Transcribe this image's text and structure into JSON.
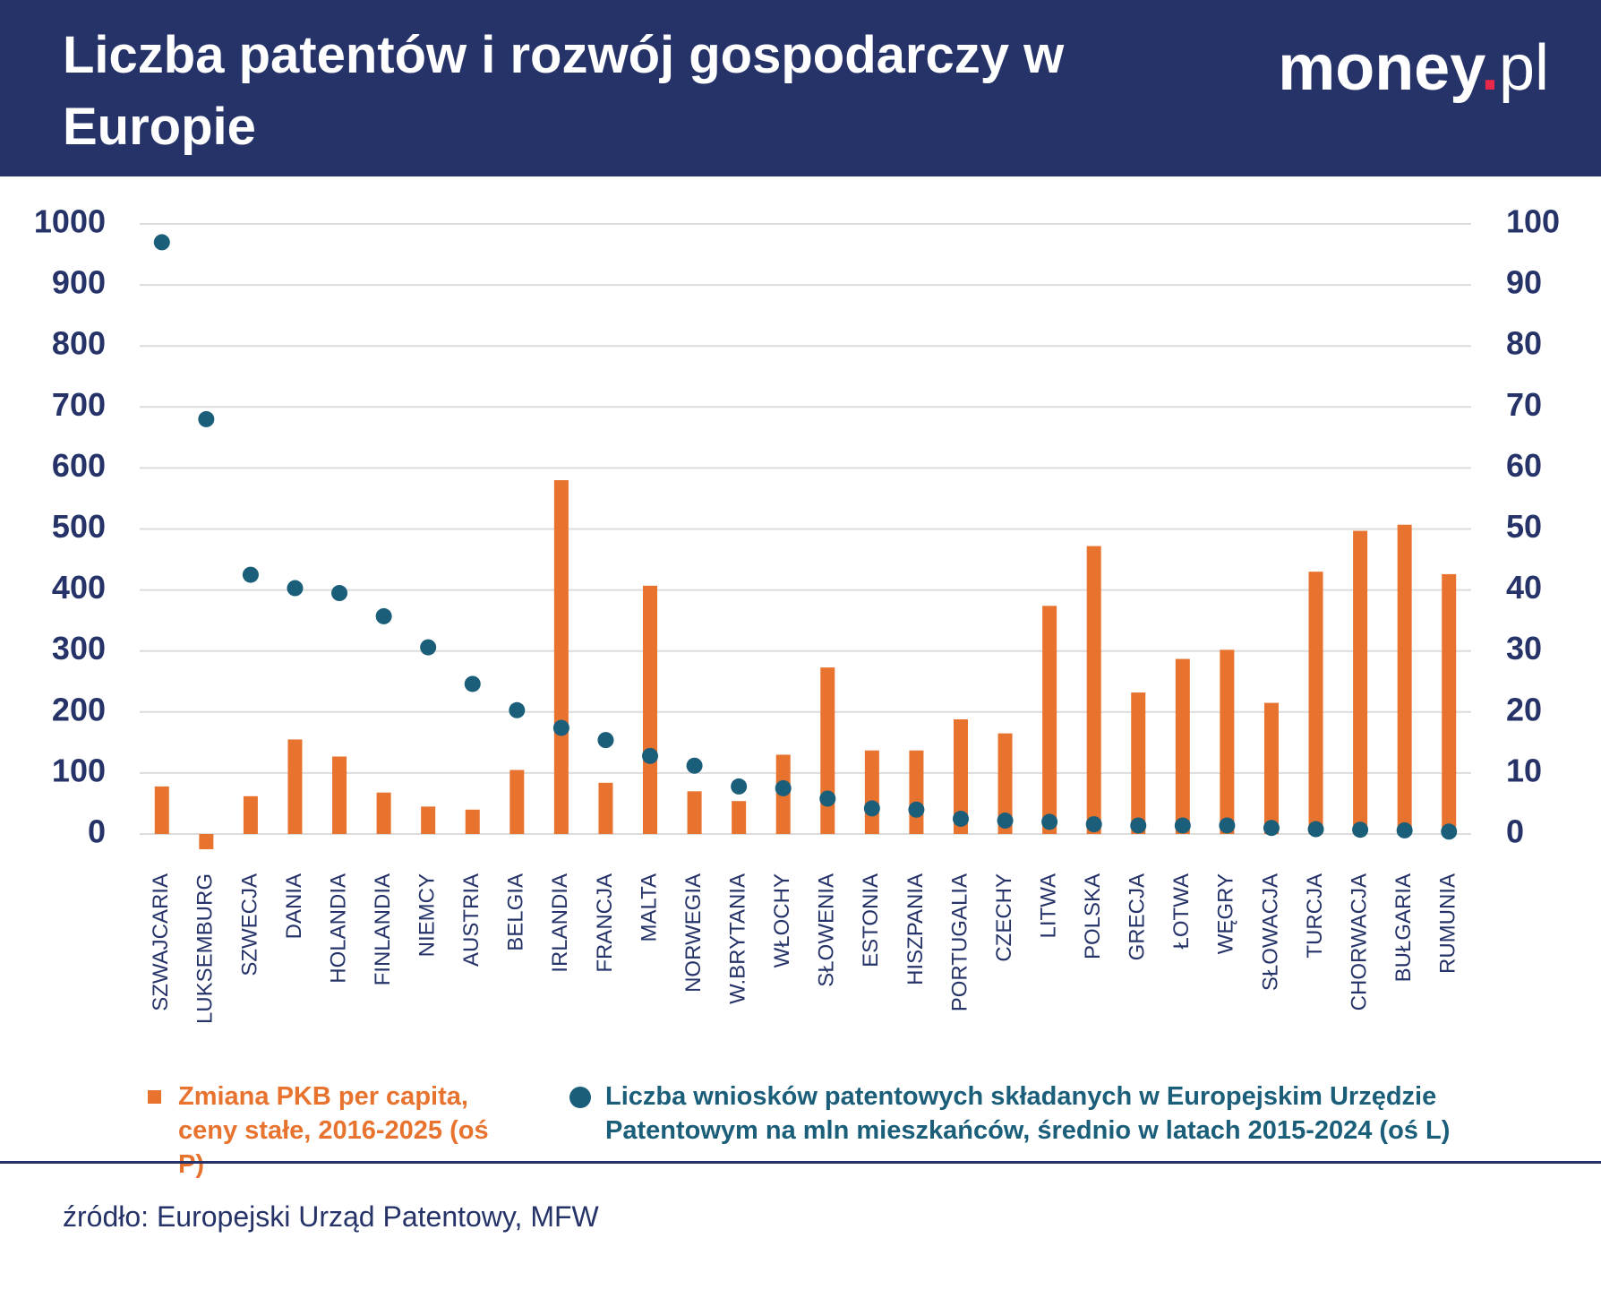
{
  "logo": {
    "main": "money",
    "dot": ".",
    "suffix": "pl"
  },
  "source": "źródło: Europejski Urząd Patentowy, MFW",
  "chart_data": {
    "type": "bar",
    "title": "Liczba patentów i rozwój gospodarczy w Europie",
    "categories": [
      "SZWAJCARIA",
      "LUKSEMBURG",
      "SZWECJA",
      "DANIA",
      "HOLANDIA",
      "FINLANDIA",
      "NIEMCY",
      "AUSTRIA",
      "BELGIA",
      "IRLANDIA",
      "FRANCJA",
      "MALTA",
      "NORWEGIA",
      "W.BRYTANIA",
      "WŁOCHY",
      "SŁOWENIA",
      "ESTONIA",
      "HISZPANIA",
      "PORTUGALIA",
      "CZECHY",
      "LITWA",
      "POLSKA",
      "GRECJA",
      "ŁOTWA",
      "WĘGRY",
      "SŁOWACJA",
      "TURCJA",
      "CHORWACJA",
      "BUŁGARIA",
      "RUMUNIA"
    ],
    "series": [
      {
        "name": "Zmiana PKB per capita, ceny stałe, 2016-2025 (oś P)",
        "type": "bar",
        "axis": "y2",
        "color": "#e8732f",
        "values": [
          7.8,
          -2.5,
          6.2,
          15.5,
          12.7,
          6.8,
          4.5,
          4.0,
          10.5,
          58,
          8.4,
          40.7,
          7.0,
          5.4,
          13.0,
          27.3,
          13.7,
          13.7,
          18.8,
          16.5,
          37.4,
          47.2,
          23.2,
          28.7,
          30.2,
          21.5,
          43.0,
          49.7,
          50.7,
          42.6
        ]
      },
      {
        "name": "Liczba wniosków patentowych składanych w Europejskim Urzędzie Patentowym na mln mieszkańców, średnio w latach 2015-2024 (oś L)",
        "type": "scatter",
        "color": "#1b5e79",
        "values": [
          970,
          680,
          425,
          403,
          395,
          357,
          306,
          246,
          203,
          174,
          154,
          128,
          112,
          78,
          75,
          58,
          42,
          40,
          25,
          22,
          20,
          16,
          14,
          14,
          14,
          10,
          8,
          7,
          6,
          4
        ]
      }
    ],
    "ylim": [
      0,
      1000
    ],
    "yticks": [
      0,
      100,
      200,
      300,
      400,
      500,
      600,
      700,
      800,
      900,
      1000
    ],
    "y2lim": [
      0,
      100
    ],
    "y2ticks": [
      0,
      10,
      20,
      30,
      40,
      50,
      60,
      70,
      80,
      90,
      100
    ],
    "grid": true
  }
}
